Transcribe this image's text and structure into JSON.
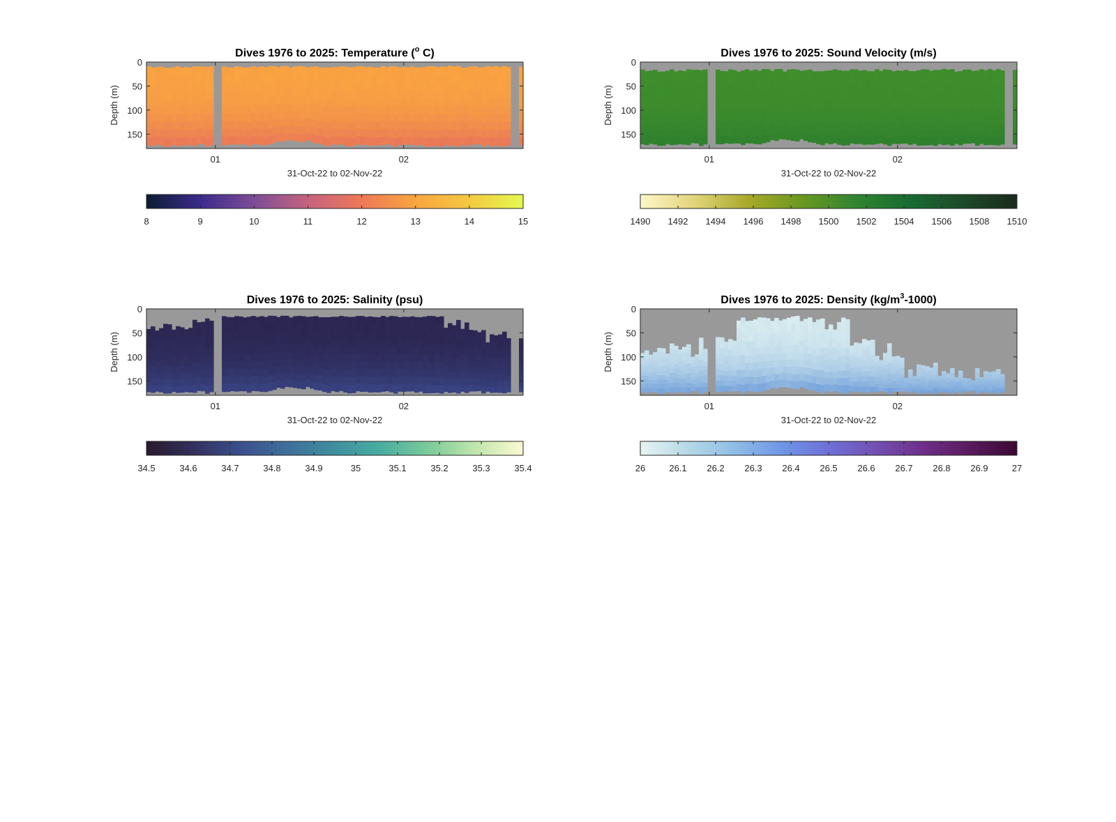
{
  "figure": {
    "background": "#ffffff"
  },
  "chart_data": [
    {
      "type": "heatmap",
      "title": "Dives 1976 to 2025: Temperature (",
      "title_sup": "o",
      "title_end": " C)",
      "xlabel": "31-Oct-22 to 02-Nov-22",
      "ylabel": "Depth (m)",
      "xticks": [
        "01",
        "02"
      ],
      "yticks": [
        0,
        50,
        100,
        150
      ],
      "ylim": [
        0,
        180
      ],
      "colorbar": {
        "min": 8,
        "max": 15,
        "ticks": [
          "8",
          "9",
          "10",
          "11",
          "12",
          "13",
          "14",
          "15"
        ],
        "colors": [
          "#0d1c32",
          "#3b2b8c",
          "#7d4d97",
          "#c6637e",
          "#ed7958",
          "#f9a541",
          "#f5c942",
          "#e4f94f"
        ]
      },
      "fill": {
        "surface": "#f9a441",
        "deep": "#e8735a"
      },
      "mask": "temperature",
      "nodata_color": "#999999",
      "gaps": [
        {
          "from": "31-Oct-22 23:50",
          "to": "01-Nov-22 00:20"
        },
        {
          "from": "02-Nov-22 19:20",
          "to": "02-Nov-22 19:50"
        }
      ]
    },
    {
      "type": "heatmap",
      "title": "Dives 1976 to 2025: Sound Velocity (m/s)",
      "xlabel": "31-Oct-22 to 02-Nov-22",
      "ylabel": "Depth (m)",
      "xticks": [
        "01",
        "02"
      ],
      "yticks": [
        0,
        50,
        100,
        150
      ],
      "ylim": [
        0,
        180
      ],
      "colorbar": {
        "min": 1490,
        "max": 1510,
        "ticks": [
          "1490",
          "1492",
          "1494",
          "1496",
          "1498",
          "1500",
          "1502",
          "1504",
          "1506",
          "1508",
          "1510"
        ],
        "colors": [
          "#fdf7c8",
          "#e2d47a",
          "#a8a92a",
          "#6a9820",
          "#318530",
          "#186b31",
          "#1d4a2a",
          "#1a2a1c"
        ]
      },
      "fill": {
        "surface": "#3f8e2c",
        "deep": "#2d7e2e"
      },
      "mask": "velocity",
      "nodata_color": "#999999"
    },
    {
      "type": "heatmap",
      "title": "Dives 1976 to 2025: Salinity (psu)",
      "xlabel": "31-Oct-22 to 02-Nov-22",
      "ylabel": "Depth (m)",
      "xticks": [
        "01",
        "02"
      ],
      "yticks": [
        0,
        50,
        100,
        150
      ],
      "ylim": [
        0,
        180
      ],
      "colorbar": {
        "min": 34.5,
        "max": 35.4,
        "ticks": [
          "34.5",
          "34.6",
          "34.7",
          "34.8",
          "34.9",
          "35",
          "35.1",
          "35.2",
          "35.3",
          "35.4"
        ],
        "colors": [
          "#28192e",
          "#33305e",
          "#3b4f8c",
          "#3e6f9a",
          "#3f8f9e",
          "#4aaea0",
          "#7ccb9a",
          "#c2e6ac",
          "#fbfad2"
        ]
      },
      "fill": {
        "surface": "#2b2550",
        "deep": "#3a4788"
      },
      "mask": "salinity",
      "nodata_color": "#999999"
    },
    {
      "type": "heatmap",
      "title": "Dives 1976 to 2025: Density (kg/m",
      "title_sup": "3",
      "title_end": "-1000)",
      "xlabel": "31-Oct-22 to 02-Nov-22",
      "ylabel": "Depth (m)",
      "xticks": [
        "01",
        "02"
      ],
      "yticks": [
        0,
        50,
        100,
        150
      ],
      "ylim": [
        0,
        180
      ],
      "colorbar": {
        "min": 26,
        "max": 27,
        "ticks": [
          "26",
          "26.1",
          "26.2",
          "26.3",
          "26.4",
          "26.5",
          "26.6",
          "26.7",
          "26.8",
          "26.9",
          "27"
        ],
        "colors": [
          "#e7f3f2",
          "#b6d9e6",
          "#8fbde6",
          "#6f96e6",
          "#6e70d8",
          "#7350b2",
          "#6e2f8a",
          "#5a1a5e",
          "#3b0a33"
        ]
      },
      "fill": {
        "surface": "#d9edf0",
        "deep": "#6a9bd8"
      },
      "mask": "density",
      "nodata_color": "#999999"
    }
  ]
}
